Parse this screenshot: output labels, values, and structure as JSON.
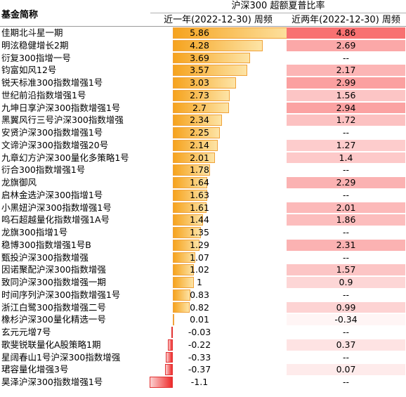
{
  "header": {
    "name_col": "基金简称",
    "group": "沪深300 超额夏普比率",
    "col1": "近一年(2022-12-30) 周频",
    "col2": "近两年(2022-12-30) 周频"
  },
  "colors": {
    "pos_bar": "#f6a31e",
    "neg_bar": "#ee2a2a",
    "heat_max": "#f87171",
    "heat_min": "#fff5f5"
  },
  "rows": [
    {
      "name": "佳期北斗星一期",
      "y1": "5.86",
      "y2": "4.86"
    },
    {
      "name": "明泫稳健增长2期",
      "y1": "4.28",
      "y2": "2.69"
    },
    {
      "name": "衍复300指增一号",
      "y1": "3.69",
      "y2": "--"
    },
    {
      "name": "钧富如风12号",
      "y1": "3.57",
      "y2": "2.17"
    },
    {
      "name": "锐天标准300指数增强1号",
      "y1": "3.03",
      "y2": "2.99"
    },
    {
      "name": "世纪前沿指数增强1号",
      "y1": "2.73",
      "y2": "1.56"
    },
    {
      "name": "九坤日享沪深300指数增强1号",
      "y1": "2.7",
      "y2": "2.94"
    },
    {
      "name": "黑翼风行三号沪深300指数增强",
      "y1": "2.34",
      "y2": "1.72"
    },
    {
      "name": "安贤沪深300指数增强1号",
      "y1": "2.25",
      "y2": "--"
    },
    {
      "name": "文谛沪深300指数增强20号",
      "y1": "2.14",
      "y2": "1.27"
    },
    {
      "name": "九章幻方沪深300量化多策略1号",
      "y1": "2.01",
      "y2": "1.4"
    },
    {
      "name": "衍合300指数增强1号",
      "y1": "1.78",
      "y2": "--"
    },
    {
      "name": "龙旗御风",
      "y1": "1.64",
      "y2": "2.29"
    },
    {
      "name": "启林金选沪深300指增1号",
      "y1": "1.63",
      "y2": "--"
    },
    {
      "name": "小黑妞沪深300指数增强1号",
      "y1": "1.61",
      "y2": "2.01"
    },
    {
      "name": "鸣石超越量化指数增强1A号",
      "y1": "1.44",
      "y2": "1.86"
    },
    {
      "name": "龙旗300指增1号",
      "y1": "1.35",
      "y2": "--"
    },
    {
      "name": "稳博300指数增强1号B",
      "y1": "1.29",
      "y2": "2.31"
    },
    {
      "name": "甄投沪深300指数增强",
      "y1": "1.07",
      "y2": "--"
    },
    {
      "name": "因诺聚配沪深300指数增强",
      "y1": "1.02",
      "y2": "1.57"
    },
    {
      "name": "致同沪深300指数增强一期",
      "y1": "1",
      "y2": "0.9"
    },
    {
      "name": "时间序列沪深300指数增强1号",
      "y1": "0.83",
      "y2": "--"
    },
    {
      "name": "浙江白鹭300指数增强二号",
      "y1": "0.82",
      "y2": "0.99"
    },
    {
      "name": "橡杉沪深300量化精选一号",
      "y1": "0.01",
      "y2": "-0.34"
    },
    {
      "name": "玄元元增7号",
      "y1": "-0.03",
      "y2": "--"
    },
    {
      "name": "歌斐锐联量化A股策略1期",
      "y1": "-0.22",
      "y2": "0.37"
    },
    {
      "name": "星阔春山1号沪深300指数增强",
      "y1": "-0.33",
      "y2": "--"
    },
    {
      "name": "珺容量化增强3号",
      "y1": "-0.37",
      "y2": "0.07"
    },
    {
      "name": "昊泽沪深300指数增强1号",
      "y1": "-1.1",
      "y2": "--"
    }
  ]
}
